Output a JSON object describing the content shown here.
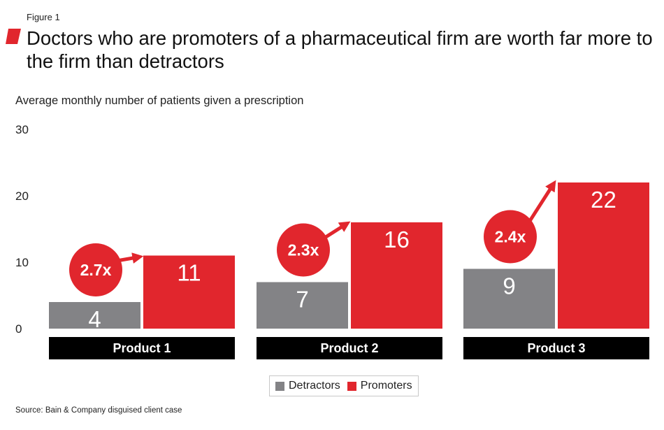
{
  "figure_label": "Figure 1",
  "title": "Doctors who are promoters of a pharmaceutical firm are worth far more to the firm than detractors",
  "subtitle": "Average monthly number of patients given a prescription",
  "source": "Source: Bain & Company disguised client case",
  "colors": {
    "detractors": "#838386",
    "promoters": "#e1262d",
    "category_bar": "#000000",
    "accent": "#e1262d"
  },
  "legend": {
    "items": [
      {
        "label": "Detractors",
        "color": "#838386"
      },
      {
        "label": "Promoters",
        "color": "#e1262d"
      }
    ]
  },
  "chart_data": {
    "type": "bar",
    "categories": [
      "Product 1",
      "Product 2",
      "Product 3"
    ],
    "series": [
      {
        "name": "Detractors",
        "values": [
          4,
          7,
          9
        ]
      },
      {
        "name": "Promoters",
        "values": [
          11,
          16,
          22
        ]
      }
    ],
    "multipliers": [
      "2.7x",
      "2.3x",
      "2.4x"
    ],
    "y_ticks": [
      0,
      10,
      20,
      30
    ],
    "ylim": [
      0,
      30
    ],
    "xlabel": "",
    "ylabel": "Average monthly number of patients given a prescription",
    "grid": false,
    "legend_position": "bottom-center"
  }
}
